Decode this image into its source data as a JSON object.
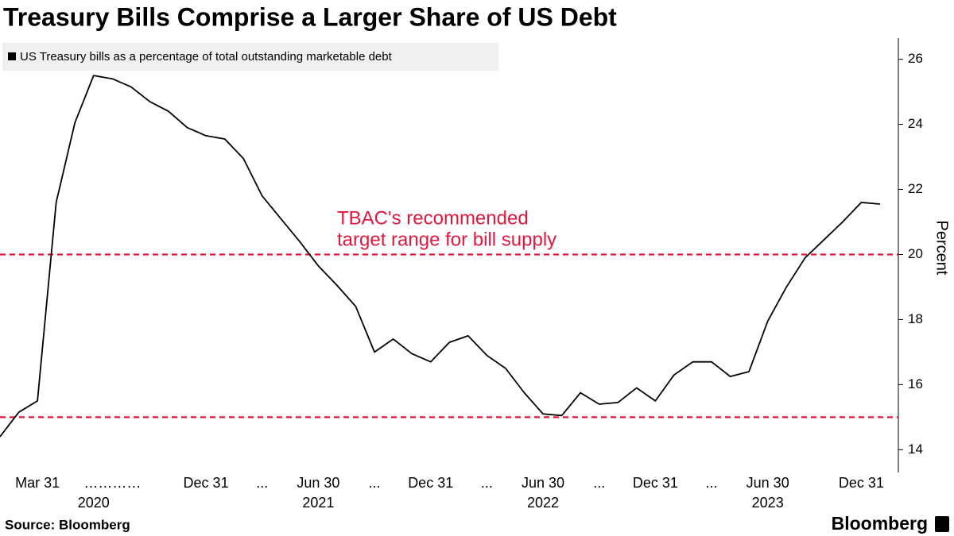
{
  "chart_data": {
    "type": "line",
    "title": "Treasury Bills Comprise a Larger Share of US Debt",
    "y_label": "Percent",
    "source": "Source: Bloomberg",
    "brand": "Bloomberg",
    "categories": [
      null,
      null,
      "Mar 31",
      null,
      null,
      null,
      "…………",
      null,
      null,
      null,
      null,
      "Dec 31",
      null,
      null,
      "...",
      null,
      null,
      "Jun 30",
      null,
      null,
      "...",
      null,
      null,
      "Dec 31",
      null,
      null,
      "...",
      null,
      null,
      "Jun 30",
      null,
      null,
      "...",
      null,
      null,
      "Dec 31",
      null,
      null,
      "...",
      null,
      null,
      "Jun 30",
      null,
      null,
      null,
      null,
      "Dec 31",
      null
    ],
    "year_labels": [
      null,
      null,
      null,
      null,
      null,
      "2020",
      null,
      null,
      null,
      null,
      null,
      null,
      null,
      null,
      null,
      null,
      null,
      "2021",
      null,
      null,
      null,
      null,
      null,
      null,
      null,
      null,
      null,
      null,
      null,
      "2022",
      null,
      null,
      null,
      null,
      null,
      null,
      null,
      null,
      null,
      null,
      null,
      "2023",
      null,
      null,
      null,
      null,
      null,
      null
    ],
    "series": [
      {
        "name": "US Treasury bills as a percentage of total outstanding marketable debt",
        "color": "#000000",
        "values": [
          14.4,
          15.15,
          15.5,
          21.6,
          24.05,
          25.5,
          25.4,
          25.15,
          24.7,
          24.4,
          23.9,
          23.65,
          23.55,
          22.95,
          21.8,
          21.1,
          20.4,
          19.65,
          19.05,
          18.4,
          17.0,
          17.4,
          16.95,
          16.7,
          17.3,
          17.5,
          16.9,
          16.5,
          15.75,
          15.1,
          15.05,
          15.75,
          15.4,
          15.45,
          15.9,
          15.5,
          16.3,
          16.7,
          16.7,
          16.25,
          16.4,
          17.95,
          19.0,
          19.9,
          20.45,
          21.0,
          21.6,
          21.55
        ]
      }
    ],
    "reference_lines": {
      "values": [
        20,
        15
      ],
      "color": "#e3173e"
    },
    "annotation": [
      "TBAC's recommended",
      "target range for bill supply"
    ],
    "ylim": [
      13.3,
      26.65
    ],
    "yticks": [
      14,
      16,
      18,
      20,
      22,
      24,
      26
    ]
  }
}
